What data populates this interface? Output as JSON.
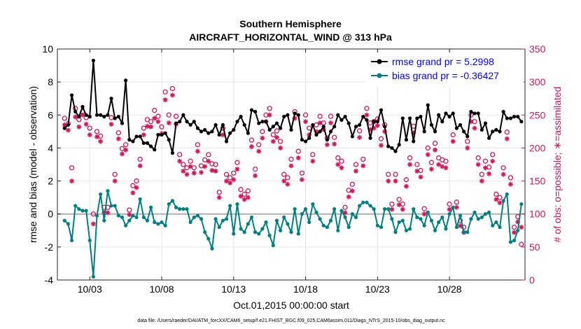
{
  "chart_data": {
    "type": "line",
    "title_line1": "Southern Hemisphere",
    "title_line2": "AIRCRAFT_HORIZONTAL_WIND @ 313 hPa",
    "xlabel": "Oct.01,2015 00:00:00 start",
    "ylabel_left": "rmse and bias (model - observation)",
    "ylabel_right": "# of obs: o=possible; ∗=assimilated",
    "footer": "data file: /Users/raeder/DAI/ATM_forcXX/CAM6_setup/f.e21.FHIST_BGC.f09_025.CAM6assim.011/Diags_NTrS_2015-10/obs_diag_output.nc",
    "xlim": [
      0,
      32.5
    ],
    "ylim_left": [
      -4,
      10
    ],
    "ylim_right": [
      0,
      350
    ],
    "xticks": [
      {
        "x": 2.25,
        "label": "10/03"
      },
      {
        "x": 7.25,
        "label": "10/08"
      },
      {
        "x": 12.25,
        "label": "10/13"
      },
      {
        "x": 17.25,
        "label": "10/18"
      },
      {
        "x": 22.25,
        "label": "10/23"
      },
      {
        "x": 27.25,
        "label": "10/28"
      }
    ],
    "yticks_left": [
      {
        "v": -4,
        "label": "-4"
      },
      {
        "v": -2,
        "label": "-2"
      },
      {
        "v": 0,
        "label": "0"
      },
      {
        "v": 2,
        "label": "2"
      },
      {
        "v": 4,
        "label": "4"
      },
      {
        "v": 6,
        "label": "6"
      },
      {
        "v": 8,
        "label": "8"
      },
      {
        "v": 10,
        "label": "10"
      }
    ],
    "yticks_right": [
      {
        "v": 0,
        "label": "0"
      },
      {
        "v": 50,
        "label": "50"
      },
      {
        "v": 100,
        "label": "100"
      },
      {
        "v": 150,
        "label": "150"
      },
      {
        "v": 200,
        "label": "200"
      },
      {
        "v": 250,
        "label": "250"
      },
      {
        "v": 300,
        "label": "300"
      },
      {
        "v": 350,
        "label": "350"
      }
    ],
    "x_start": 0.5,
    "x_step": 0.25,
    "series": [
      {
        "name": "rmse",
        "legend": "rmse grand pr = 5.2998",
        "line_color": "#000000",
        "legend_text_color": "#0000ff",
        "values": [
          5.2,
          5.4,
          7.2,
          6.2,
          5.9,
          6.5,
          6.0,
          5.9,
          9.3,
          6.0,
          6.0,
          5.9,
          6.0,
          7.0,
          5.8,
          5.9,
          5.5,
          8.1,
          4.5,
          4.4,
          4.7,
          4.7,
          4.3,
          4.3,
          4.1,
          3.9,
          4.8,
          4.8,
          4.9,
          4.5,
          3.7,
          5.5,
          5.6,
          6.0,
          5.6,
          5.4,
          5.6,
          5.2,
          5.0,
          5.1,
          4.9,
          5.0,
          5.4,
          4.8,
          5.4,
          4.4,
          4.9,
          5.1,
          5.6,
          5.9,
          5.4,
          4.9,
          6.3,
          6.2,
          5.5,
          5.6,
          5.6,
          5.1,
          5.3,
          5.5,
          5.2,
          5.9,
          6.0,
          5.1,
          6.1,
          6.0,
          4.5,
          4.4,
          4.6,
          5.4,
          4.8,
          5.0,
          5.3,
          4.5,
          5.0,
          5.3,
          6.0,
          5.7,
          5.9,
          5.5,
          4.7,
          5.3,
          5.4,
          5.9,
          5.7,
          4.6,
          5.6,
          5.6,
          6.3,
          5.3,
          4.1,
          4.0,
          3.8,
          4.2,
          5.8,
          4.5,
          5.8,
          4.4,
          5.8,
          5.9,
          5.0,
          6.6,
          5.4,
          5.0,
          6.0,
          5.6,
          6.1,
          5.9,
          6.1,
          5.2,
          5.4,
          5.0,
          4.7,
          6.2,
          6.1,
          6.1,
          5.1,
          5.5,
          4.6,
          5.0,
          5.1,
          5.0,
          6.2,
          5.8,
          5.8,
          5.9,
          5.9,
          5.6
        ]
      },
      {
        "name": "bias",
        "legend": "bias grand pr = -0.36427",
        "line_color": "#008080",
        "legend_text_color": "#0000ff",
        "values": [
          -0.4,
          -0.6,
          -1.6,
          0.5,
          0.3,
          0.2,
          0.2,
          -1.6,
          -3.8,
          -0.1,
          1.2,
          -0.4,
          1.4,
          0.5,
          0.5,
          -0.1,
          -0.2,
          -0.7,
          -0.4,
          -0.1,
          -0.2,
          0.9,
          -0.2,
          -0.4,
          0.4,
          -0.5,
          -0.6,
          -0.5,
          -0.7,
          0.6,
          0.8,
          0.4,
          0.3,
          0.3,
          0.3,
          -0.5,
          -0.2,
          -0.1,
          -0.3,
          -1.1,
          -1.5,
          -2.1,
          -0.3,
          -0.8,
          -0.4,
          -0.3,
          0.5,
          -1.2,
          0.6,
          -0.9,
          -1.1,
          -0.6,
          -0.2,
          -1.1,
          -1.2,
          -0.9,
          -0.5,
          -1.3,
          -1.9,
          -0.4,
          -1.0,
          -0.2,
          -0.6,
          -1.1,
          0.3,
          -1.2,
          0.0,
          0.3,
          -0.5,
          0.6,
          0.1,
          -0.3,
          -0.7,
          -0.8,
          -0.4,
          0.3,
          -1.0,
          0.2,
          -0.2,
          -0.8,
          0.0,
          -0.2,
          0.5,
          0.7,
          0.7,
          0.5,
          0.3,
          -0.7,
          -0.8,
          0.3,
          0.3,
          -0.3,
          -1.1,
          -0.5,
          -0.4,
          -1.0,
          -0.9,
          0.3,
          -0.2,
          -0.3,
          -0.7,
          0.1,
          -0.4,
          -1.0,
          -0.5,
          -0.2,
          -0.9,
          0.0,
          0.4,
          -0.8,
          -0.1,
          -1.1,
          -1.1,
          -0.3,
          0.1,
          -0.3,
          -0.2,
          0.0,
          0.1,
          -0.7,
          -0.5,
          -0.8,
          0.8,
          1.2,
          -1.7,
          -1.6,
          -1.0,
          0.6
        ]
      }
    ],
    "obs_possible": {
      "marker": "o",
      "color": "#d4145a",
      "values": [
        245,
        237,
        170,
        260,
        243,
        255,
        246,
        230,
        100,
        225,
        218,
        110,
        110,
        246,
        160,
        223,
        199,
        205,
        106,
        143,
        150,
        183,
        230,
        243,
        240,
        257,
        248,
        232,
        285,
        250,
        290,
        248,
        190,
        175,
        170,
        180,
        170,
        205,
        173,
        182,
        190,
        176,
        175,
        133,
        230,
        160,
        155,
        162,
        178,
        137,
        130,
        135,
        212,
        168,
        205,
        225,
        250,
        260,
        220,
        226,
        210,
        160,
        155,
        183,
        255,
        195,
        162,
        250,
        230,
        190,
        235,
        248,
        238,
        215,
        248,
        216,
        185,
        180,
        110,
        136,
        145,
        175,
        226,
        183,
        260,
        238,
        240,
        244,
        214,
        235,
        160,
        115,
        160,
        122,
        115,
        152,
        185,
        233,
        175,
        166,
        108,
        200,
        178,
        207,
        185,
        182,
        180,
        115,
        220,
        118,
        90,
        80,
        210,
        250,
        240,
        185,
        160,
        180,
        171,
        190,
        130,
        125,
        170,
        224,
        155,
        80,
        96,
        54
      ]
    },
    "obs_assimilated": {
      "marker": "*",
      "color": "#d4145a",
      "values": [
        235,
        227,
        150,
        247,
        232,
        250,
        236,
        220,
        85,
        217,
        210,
        102,
        102,
        236,
        150,
        214,
        191,
        197,
        99,
        132,
        140,
        173,
        220,
        233,
        232,
        245,
        240,
        222,
        273,
        238,
        280,
        236,
        180,
        165,
        160,
        172,
        162,
        195,
        163,
        172,
        180,
        166,
        165,
        125,
        220,
        150,
        147,
        152,
        168,
        127,
        122,
        125,
        202,
        158,
        195,
        215,
        240,
        250,
        210,
        216,
        200,
        150,
        145,
        173,
        245,
        185,
        152,
        240,
        220,
        180,
        225,
        238,
        228,
        205,
        238,
        206,
        175,
        170,
        102,
        126,
        135,
        165,
        216,
        173,
        250,
        228,
        230,
        234,
        204,
        225,
        150,
        107,
        150,
        114,
        107,
        142,
        175,
        223,
        165,
        156,
        100,
        190,
        168,
        197,
        175,
        172,
        170,
        107,
        210,
        110,
        82,
        72,
        200,
        240,
        230,
        175,
        150,
        170,
        161,
        180,
        122,
        117,
        160,
        214,
        145,
        72,
        88,
        80
      ]
    }
  }
}
